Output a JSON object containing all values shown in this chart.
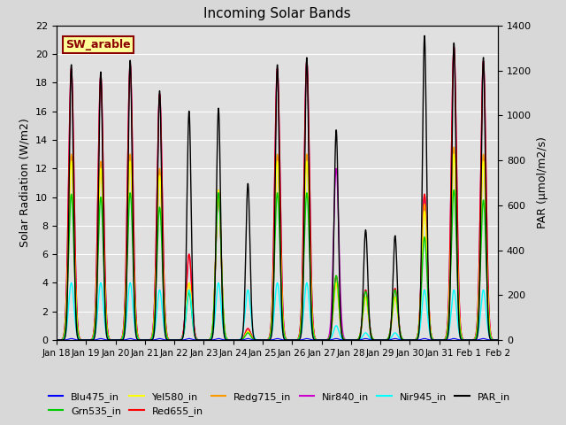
{
  "title": "Incoming Solar Bands",
  "ylabel_left": "Solar Radiation (W/m2)",
  "ylabel_right": "PAR (μmol/m2/s)",
  "ylim_left": [
    0,
    22
  ],
  "ylim_right": [
    0,
    1400
  ],
  "background_color": "#d8d8d8",
  "plot_bg_color": "#e0e0e0",
  "annotation_text": "SW_arable",
  "annotation_color": "#8b0000",
  "annotation_bg": "#ffff99",
  "annotation_border": "#8b0000",
  "days": [
    "Jan 18",
    "Jan 19",
    "Jan 20",
    "Jan 21",
    "Jan 22",
    "Jan 23",
    "Jan 24",
    "Jan 25",
    "Jan 26",
    "Jan 27",
    "Jan 28",
    "Jan 29",
    "Jan 30",
    "Jan 31",
    "Feb 1",
    "Feb 2"
  ],
  "series_order": [
    "Nir840_in",
    "Red655_in",
    "Redg715_in",
    "Grn535_in",
    "Yel580_in",
    "Nir945_in",
    "Blu475_in",
    "PAR_in"
  ],
  "series": {
    "Blu475_in": {
      "color": "#0000ff",
      "lw": 0.8,
      "sigma": 0.09,
      "peaks": [
        0.1,
        0.1,
        0.1,
        0.1,
        0.1,
        0.1,
        0.1,
        0.1,
        0.1,
        0.1,
        0.1,
        0.1,
        0.1,
        0.1,
        0.1,
        0.1
      ]
    },
    "Grn535_in": {
      "color": "#00cc00",
      "lw": 1.0,
      "sigma": 0.09,
      "peaks": [
        10.2,
        10.0,
        10.3,
        9.3,
        3.3,
        10.3,
        0.5,
        10.3,
        10.3,
        4.5,
        3.4,
        3.5,
        7.2,
        10.5,
        9.8,
        10.5
      ]
    },
    "Yel580_in": {
      "color": "#ffff00",
      "lw": 1.0,
      "sigma": 0.09,
      "peaks": [
        12.5,
        12.0,
        12.5,
        11.5,
        4.0,
        10.5,
        0.6,
        12.5,
        12.5,
        4.0,
        3.0,
        3.0,
        9.0,
        13.0,
        12.5,
        13.0
      ]
    },
    "Red655_in": {
      "color": "#ff0000",
      "lw": 1.0,
      "sigma": 0.09,
      "peaks": [
        19.0,
        18.5,
        19.3,
        17.2,
        6.0,
        10.4,
        0.8,
        19.0,
        19.5,
        4.5,
        3.5,
        3.6,
        10.2,
        20.5,
        19.5,
        20.0
      ]
    },
    "Redg715_in": {
      "color": "#ff9900",
      "lw": 1.0,
      "sigma": 0.09,
      "peaks": [
        13.0,
        12.5,
        13.0,
        12.0,
        4.0,
        10.5,
        0.6,
        13.0,
        13.0,
        4.0,
        3.0,
        3.0,
        9.5,
        13.5,
        13.0,
        13.5
      ]
    },
    "Nir840_in": {
      "color": "#cc00cc",
      "lw": 1.0,
      "sigma": 0.09,
      "peaks": [
        19.0,
        18.5,
        19.3,
        17.2,
        6.0,
        10.4,
        0.8,
        19.0,
        19.5,
        12.0,
        3.5,
        3.6,
        10.2,
        20.5,
        19.5,
        20.0
      ]
    },
    "Nir945_in": {
      "color": "#00ffff",
      "lw": 1.0,
      "sigma": 0.09,
      "peaks": [
        4.0,
        4.0,
        4.0,
        3.5,
        3.5,
        4.0,
        3.5,
        4.0,
        4.0,
        1.0,
        0.5,
        0.5,
        3.5,
        3.5,
        3.5,
        3.5
      ]
    },
    "PAR_in": {
      "color": "#000000",
      "lw": 1.0,
      "sigma": 0.07,
      "par": true,
      "peaks_w": [
        19.0,
        18.5,
        19.3,
        17.2,
        15.8,
        16.0,
        10.8,
        19.0,
        19.5,
        14.5,
        7.6,
        7.2,
        21.0,
        20.5,
        19.5,
        20.0
      ],
      "par_scale": 64.5
    }
  },
  "legend_order": [
    "Blu475_in",
    "Grn535_in",
    "Yel580_in",
    "Red655_in",
    "Redg715_in",
    "Nir840_in",
    "Nir945_in",
    "PAR_in"
  ]
}
